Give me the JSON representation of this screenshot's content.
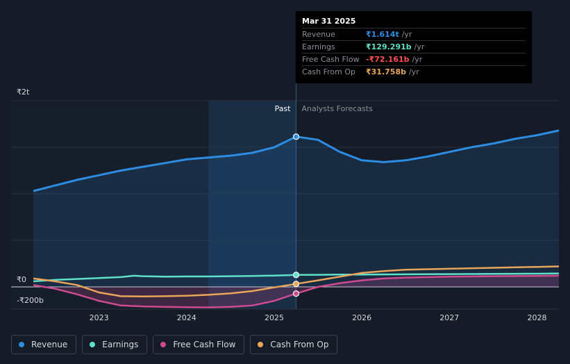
{
  "chart_data": {
    "type": "line",
    "x_range": [
      2022.25,
      2028.25
    ],
    "ylim": [
      -200,
      2000
    ],
    "y_ticks": [
      {
        "value": 2000,
        "label": "₹2t"
      },
      {
        "value": 0,
        "label": "₹0"
      },
      {
        "value": -200,
        "label": "-₹200b"
      }
    ],
    "x_ticks": [
      {
        "value": 2023,
        "label": "2023"
      },
      {
        "value": 2024,
        "label": "2024"
      },
      {
        "value": 2025,
        "label": "2025"
      },
      {
        "value": 2026,
        "label": "2026"
      },
      {
        "value": 2027,
        "label": "2027"
      },
      {
        "value": 2028,
        "label": "2028"
      }
    ],
    "past_label": "Past",
    "forecast_label": "Analysts Forecasts",
    "divider_x": 2025.25,
    "highlight_start_x": 2024.25,
    "series": [
      {
        "name": "Revenue",
        "color": "#2c8de3",
        "fill": true,
        "points": [
          [
            2022.25,
            1030
          ],
          [
            2022.5,
            1090
          ],
          [
            2022.75,
            1150
          ],
          [
            2023.0,
            1200
          ],
          [
            2023.25,
            1250
          ],
          [
            2023.5,
            1290
          ],
          [
            2023.75,
            1330
          ],
          [
            2024.0,
            1370
          ],
          [
            2024.25,
            1390
          ],
          [
            2024.5,
            1410
          ],
          [
            2024.75,
            1440
          ],
          [
            2025.0,
            1500
          ],
          [
            2025.25,
            1614
          ],
          [
            2025.5,
            1580
          ],
          [
            2025.75,
            1450
          ],
          [
            2026.0,
            1360
          ],
          [
            2026.25,
            1340
          ],
          [
            2026.5,
            1360
          ],
          [
            2026.75,
            1400
          ],
          [
            2027.0,
            1450
          ],
          [
            2027.25,
            1500
          ],
          [
            2027.5,
            1540
          ],
          [
            2027.75,
            1590
          ],
          [
            2028.0,
            1630
          ],
          [
            2028.25,
            1680
          ]
        ]
      },
      {
        "name": "Earnings",
        "color": "#5fe0c8",
        "fill": false,
        "points": [
          [
            2022.25,
            60
          ],
          [
            2022.5,
            75
          ],
          [
            2022.75,
            85
          ],
          [
            2023.0,
            95
          ],
          [
            2023.25,
            105
          ],
          [
            2023.4,
            120
          ],
          [
            2023.5,
            115
          ],
          [
            2023.75,
            110
          ],
          [
            2024.0,
            112
          ],
          [
            2024.25,
            112
          ],
          [
            2024.5,
            115
          ],
          [
            2024.75,
            118
          ],
          [
            2025.0,
            122
          ],
          [
            2025.25,
            129
          ],
          [
            2025.5,
            130
          ],
          [
            2025.75,
            132
          ],
          [
            2026.0,
            133
          ],
          [
            2026.5,
            135
          ],
          [
            2027.0,
            137
          ],
          [
            2027.5,
            140
          ],
          [
            2028.0,
            142
          ],
          [
            2028.25,
            145
          ]
        ]
      },
      {
        "name": "Free Cash Flow",
        "color": "#cf4a8e",
        "fill": true,
        "points": [
          [
            2022.25,
            20
          ],
          [
            2022.5,
            -20
          ],
          [
            2022.75,
            -80
          ],
          [
            2023.0,
            -150
          ],
          [
            2023.25,
            -200
          ],
          [
            2023.5,
            -210
          ],
          [
            2023.75,
            -215
          ],
          [
            2024.0,
            -218
          ],
          [
            2024.25,
            -220
          ],
          [
            2024.5,
            -215
          ],
          [
            2024.75,
            -200
          ],
          [
            2025.0,
            -150
          ],
          [
            2025.25,
            -72
          ],
          [
            2025.5,
            0
          ],
          [
            2025.75,
            40
          ],
          [
            2026.0,
            70
          ],
          [
            2026.25,
            90
          ],
          [
            2026.5,
            100
          ],
          [
            2027.0,
            110
          ],
          [
            2027.5,
            115
          ],
          [
            2028.0,
            118
          ],
          [
            2028.25,
            120
          ]
        ]
      },
      {
        "name": "Cash From Op",
        "color": "#e9a55a",
        "fill": false,
        "points": [
          [
            2022.25,
            90
          ],
          [
            2022.5,
            60
          ],
          [
            2022.75,
            20
          ],
          [
            2023.0,
            -60
          ],
          [
            2023.25,
            -100
          ],
          [
            2023.5,
            -102
          ],
          [
            2023.75,
            -100
          ],
          [
            2024.0,
            -95
          ],
          [
            2024.25,
            -85
          ],
          [
            2024.5,
            -70
          ],
          [
            2024.75,
            -45
          ],
          [
            2025.0,
            -5
          ],
          [
            2025.25,
            32
          ],
          [
            2025.5,
            70
          ],
          [
            2025.75,
            110
          ],
          [
            2026.0,
            150
          ],
          [
            2026.25,
            170
          ],
          [
            2026.5,
            185
          ],
          [
            2027.0,
            195
          ],
          [
            2027.5,
            205
          ],
          [
            2028.0,
            215
          ],
          [
            2028.25,
            220
          ]
        ]
      }
    ]
  },
  "tooltip": {
    "date": "Mar 31 2025",
    "rows": [
      {
        "label": "Revenue",
        "value": "₹1.614t",
        "unit": "/yr",
        "color": "#2c8de3"
      },
      {
        "label": "Earnings",
        "value": "₹129.291b",
        "unit": "/yr",
        "color": "#5fe0c8"
      },
      {
        "label": "Free Cash Flow",
        "value": "-₹72.161b",
        "unit": "/yr",
        "color": "#ff4f4f"
      },
      {
        "label": "Cash From Op",
        "value": "₹31.758b",
        "unit": "/yr",
        "color": "#e9a55a"
      }
    ]
  },
  "legend": [
    {
      "label": "Revenue",
      "color": "#2c8de3"
    },
    {
      "label": "Earnings",
      "color": "#5fe0c8"
    },
    {
      "label": "Free Cash Flow",
      "color": "#cf4a8e"
    },
    {
      "label": "Cash From Op",
      "color": "#e9a55a"
    }
  ]
}
